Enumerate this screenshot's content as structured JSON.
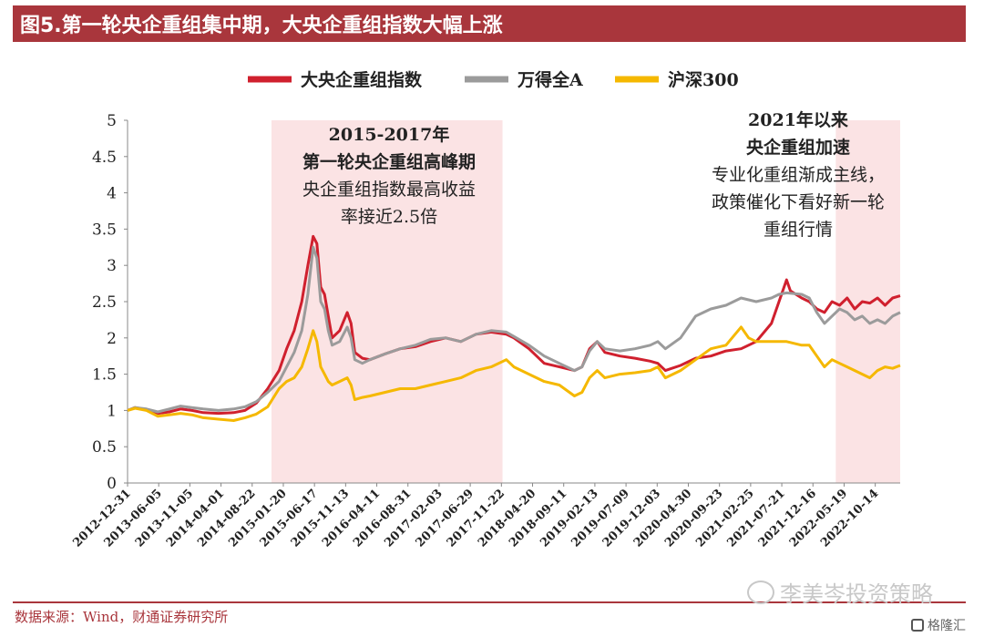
{
  "title": "图5.第一轮央企重组集中期，大央企重组指数大幅上涨",
  "source": "数据来源：Wind，财通证券研究所",
  "watermark": "李美岑投资策略",
  "brand": "格隆汇",
  "chart_data": {
    "type": "line",
    "ylim": [
      0,
      5
    ],
    "yticks": [
      "0",
      "0.5",
      "1",
      "1.5",
      "2",
      "2.5",
      "3",
      "3.5",
      "4",
      "4.5",
      "5"
    ],
    "x_tick_labels": [
      "2012-12-31",
      "2013-06-05",
      "2013-11-05",
      "2014-04-01",
      "2014-08-22",
      "2015-01-20",
      "2015-06-17",
      "2015-11-13",
      "2016-04-11",
      "2016-08-31",
      "2017-02-03",
      "2017-06-29",
      "2017-11-22",
      "2018-04-20",
      "2018-09-11",
      "2019-02-13",
      "2019-07-09",
      "2019-12-03",
      "2020-04-30",
      "2020-09-23",
      "2021-02-25",
      "2021-07-21",
      "2021-12-16",
      "2022-05-19",
      "2022-10-14"
    ],
    "x_end": 2023.2,
    "legend_position": "top",
    "series": [
      {
        "name": "大央企重组指数",
        "color": "#d0202e",
        "points": [
          [
            2013.0,
            1.0
          ],
          [
            2013.1,
            1.04
          ],
          [
            2013.25,
            1.01
          ],
          [
            2013.4,
            0.96
          ],
          [
            2013.55,
            0.98
          ],
          [
            2013.7,
            1.02
          ],
          [
            2013.85,
            1.0
          ],
          [
            2014.0,
            0.97
          ],
          [
            2014.2,
            0.96
          ],
          [
            2014.4,
            0.97
          ],
          [
            2014.55,
            1.0
          ],
          [
            2014.7,
            1.1
          ],
          [
            2014.85,
            1.3
          ],
          [
            2015.0,
            1.55
          ],
          [
            2015.1,
            1.85
          ],
          [
            2015.2,
            2.1
          ],
          [
            2015.3,
            2.5
          ],
          [
            2015.38,
            3.0
          ],
          [
            2015.45,
            3.4
          ],
          [
            2015.5,
            3.3
          ],
          [
            2015.55,
            2.7
          ],
          [
            2015.6,
            2.6
          ],
          [
            2015.65,
            2.3
          ],
          [
            2015.7,
            2.0
          ],
          [
            2015.8,
            2.1
          ],
          [
            2015.9,
            2.35
          ],
          [
            2015.95,
            2.2
          ],
          [
            2016.0,
            1.8
          ],
          [
            2016.1,
            1.72
          ],
          [
            2016.2,
            1.7
          ],
          [
            2016.4,
            1.78
          ],
          [
            2016.6,
            1.85
          ],
          [
            2016.8,
            1.88
          ],
          [
            2017.0,
            1.95
          ],
          [
            2017.2,
            2.0
          ],
          [
            2017.4,
            1.95
          ],
          [
            2017.6,
            2.05
          ],
          [
            2017.8,
            2.08
          ],
          [
            2018.0,
            2.05
          ],
          [
            2018.1,
            2.0
          ],
          [
            2018.3,
            1.85
          ],
          [
            2018.5,
            1.65
          ],
          [
            2018.7,
            1.6
          ],
          [
            2018.9,
            1.55
          ],
          [
            2019.0,
            1.6
          ],
          [
            2019.1,
            1.85
          ],
          [
            2019.2,
            1.95
          ],
          [
            2019.3,
            1.8
          ],
          [
            2019.5,
            1.75
          ],
          [
            2019.7,
            1.72
          ],
          [
            2019.9,
            1.68
          ],
          [
            2020.0,
            1.65
          ],
          [
            2020.1,
            1.55
          ],
          [
            2020.3,
            1.62
          ],
          [
            2020.5,
            1.72
          ],
          [
            2020.7,
            1.75
          ],
          [
            2020.9,
            1.82
          ],
          [
            2021.1,
            1.85
          ],
          [
            2021.3,
            1.95
          ],
          [
            2021.5,
            2.2
          ],
          [
            2021.6,
            2.5
          ],
          [
            2021.7,
            2.8
          ],
          [
            2021.75,
            2.65
          ],
          [
            2021.9,
            2.55
          ],
          [
            2022.0,
            2.5
          ],
          [
            2022.1,
            2.4
          ],
          [
            2022.2,
            2.35
          ],
          [
            2022.3,
            2.5
          ],
          [
            2022.4,
            2.45
          ],
          [
            2022.5,
            2.55
          ],
          [
            2022.6,
            2.4
          ],
          [
            2022.7,
            2.5
          ],
          [
            2022.8,
            2.48
          ],
          [
            2022.9,
            2.55
          ],
          [
            2023.0,
            2.45
          ],
          [
            2023.1,
            2.55
          ],
          [
            2023.2,
            2.58
          ]
        ]
      },
      {
        "name": "万得全A",
        "color": "#9b9b9b",
        "points": [
          [
            2013.0,
            1.0
          ],
          [
            2013.1,
            1.04
          ],
          [
            2013.25,
            1.02
          ],
          [
            2013.4,
            0.98
          ],
          [
            2013.55,
            1.02
          ],
          [
            2013.7,
            1.06
          ],
          [
            2013.85,
            1.04
          ],
          [
            2014.0,
            1.02
          ],
          [
            2014.2,
            1.0
          ],
          [
            2014.4,
            1.02
          ],
          [
            2014.55,
            1.05
          ],
          [
            2014.7,
            1.12
          ],
          [
            2014.85,
            1.25
          ],
          [
            2015.0,
            1.4
          ],
          [
            2015.1,
            1.6
          ],
          [
            2015.2,
            1.8
          ],
          [
            2015.3,
            2.1
          ],
          [
            2015.38,
            2.6
          ],
          [
            2015.45,
            3.25
          ],
          [
            2015.5,
            3.1
          ],
          [
            2015.55,
            2.5
          ],
          [
            2015.6,
            2.4
          ],
          [
            2015.65,
            2.1
          ],
          [
            2015.7,
            1.9
          ],
          [
            2015.8,
            1.95
          ],
          [
            2015.9,
            2.15
          ],
          [
            2015.95,
            2.0
          ],
          [
            2016.0,
            1.7
          ],
          [
            2016.1,
            1.65
          ],
          [
            2016.2,
            1.7
          ],
          [
            2016.4,
            1.78
          ],
          [
            2016.6,
            1.85
          ],
          [
            2016.8,
            1.9
          ],
          [
            2017.0,
            1.98
          ],
          [
            2017.2,
            2.0
          ],
          [
            2017.4,
            1.95
          ],
          [
            2017.6,
            2.05
          ],
          [
            2017.8,
            2.1
          ],
          [
            2018.0,
            2.08
          ],
          [
            2018.1,
            2.02
          ],
          [
            2018.3,
            1.9
          ],
          [
            2018.5,
            1.75
          ],
          [
            2018.7,
            1.65
          ],
          [
            2018.9,
            1.55
          ],
          [
            2019.0,
            1.6
          ],
          [
            2019.1,
            1.82
          ],
          [
            2019.2,
            1.95
          ],
          [
            2019.3,
            1.85
          ],
          [
            2019.5,
            1.82
          ],
          [
            2019.7,
            1.85
          ],
          [
            2019.9,
            1.9
          ],
          [
            2020.0,
            1.95
          ],
          [
            2020.1,
            1.85
          ],
          [
            2020.3,
            2.0
          ],
          [
            2020.5,
            2.3
          ],
          [
            2020.7,
            2.4
          ],
          [
            2020.9,
            2.45
          ],
          [
            2021.1,
            2.55
          ],
          [
            2021.3,
            2.5
          ],
          [
            2021.5,
            2.55
          ],
          [
            2021.6,
            2.6
          ],
          [
            2021.7,
            2.62
          ],
          [
            2021.9,
            2.6
          ],
          [
            2022.0,
            2.55
          ],
          [
            2022.1,
            2.35
          ],
          [
            2022.2,
            2.2
          ],
          [
            2022.3,
            2.3
          ],
          [
            2022.4,
            2.4
          ],
          [
            2022.5,
            2.35
          ],
          [
            2022.6,
            2.25
          ],
          [
            2022.7,
            2.3
          ],
          [
            2022.8,
            2.2
          ],
          [
            2022.9,
            2.25
          ],
          [
            2023.0,
            2.2
          ],
          [
            2023.1,
            2.3
          ],
          [
            2023.2,
            2.35
          ]
        ]
      },
      {
        "name": "沪深300",
        "color": "#f5b800",
        "points": [
          [
            2013.0,
            1.0
          ],
          [
            2013.1,
            1.03
          ],
          [
            2013.25,
            1.0
          ],
          [
            2013.4,
            0.92
          ],
          [
            2013.55,
            0.94
          ],
          [
            2013.7,
            0.96
          ],
          [
            2013.85,
            0.94
          ],
          [
            2014.0,
            0.9
          ],
          [
            2014.2,
            0.88
          ],
          [
            2014.4,
            0.86
          ],
          [
            2014.55,
            0.9
          ],
          [
            2014.7,
            0.95
          ],
          [
            2014.85,
            1.05
          ],
          [
            2015.0,
            1.3
          ],
          [
            2015.1,
            1.4
          ],
          [
            2015.2,
            1.45
          ],
          [
            2015.3,
            1.6
          ],
          [
            2015.38,
            1.85
          ],
          [
            2015.45,
            2.1
          ],
          [
            2015.5,
            1.95
          ],
          [
            2015.55,
            1.6
          ],
          [
            2015.6,
            1.5
          ],
          [
            2015.65,
            1.4
          ],
          [
            2015.7,
            1.35
          ],
          [
            2015.8,
            1.4
          ],
          [
            2015.9,
            1.45
          ],
          [
            2015.95,
            1.35
          ],
          [
            2016.0,
            1.15
          ],
          [
            2016.1,
            1.18
          ],
          [
            2016.2,
            1.2
          ],
          [
            2016.4,
            1.25
          ],
          [
            2016.6,
            1.3
          ],
          [
            2016.8,
            1.3
          ],
          [
            2017.0,
            1.35
          ],
          [
            2017.2,
            1.4
          ],
          [
            2017.4,
            1.45
          ],
          [
            2017.6,
            1.55
          ],
          [
            2017.8,
            1.6
          ],
          [
            2018.0,
            1.7
          ],
          [
            2018.1,
            1.6
          ],
          [
            2018.3,
            1.5
          ],
          [
            2018.5,
            1.4
          ],
          [
            2018.7,
            1.35
          ],
          [
            2018.9,
            1.2
          ],
          [
            2019.0,
            1.25
          ],
          [
            2019.1,
            1.45
          ],
          [
            2019.2,
            1.55
          ],
          [
            2019.3,
            1.45
          ],
          [
            2019.5,
            1.5
          ],
          [
            2019.7,
            1.52
          ],
          [
            2019.9,
            1.55
          ],
          [
            2020.0,
            1.6
          ],
          [
            2020.1,
            1.45
          ],
          [
            2020.3,
            1.55
          ],
          [
            2020.5,
            1.7
          ],
          [
            2020.7,
            1.85
          ],
          [
            2020.9,
            1.9
          ],
          [
            2021.1,
            2.15
          ],
          [
            2021.2,
            2.0
          ],
          [
            2021.3,
            1.95
          ],
          [
            2021.5,
            1.95
          ],
          [
            2021.7,
            1.95
          ],
          [
            2021.9,
            1.9
          ],
          [
            2022.0,
            1.9
          ],
          [
            2022.1,
            1.75
          ],
          [
            2022.2,
            1.6
          ],
          [
            2022.3,
            1.7
          ],
          [
            2022.4,
            1.65
          ],
          [
            2022.5,
            1.6
          ],
          [
            2022.6,
            1.55
          ],
          [
            2022.7,
            1.5
          ],
          [
            2022.8,
            1.45
          ],
          [
            2022.9,
            1.55
          ],
          [
            2023.0,
            1.6
          ],
          [
            2023.1,
            1.58
          ],
          [
            2023.2,
            1.62
          ]
        ]
      }
    ],
    "shaded_regions": [
      {
        "from": 2014.9,
        "to": 2017.95
      },
      {
        "from": 2022.35,
        "to": 2023.2
      }
    ],
    "annotations": [
      {
        "lines": [
          "2015-2017年",
          "第一轮央企重组高峰期",
          "央企重组指数最高收益",
          "率接近2.5倍"
        ],
        "bold": [
          true,
          true,
          false,
          false
        ]
      },
      {
        "lines": [
          "2021年以来",
          "央企重组加速",
          "专业化重组渐成主线，",
          "政策催化下看好新一轮",
          "重组行情"
        ],
        "bold": [
          true,
          true,
          false,
          false,
          false
        ]
      }
    ]
  }
}
